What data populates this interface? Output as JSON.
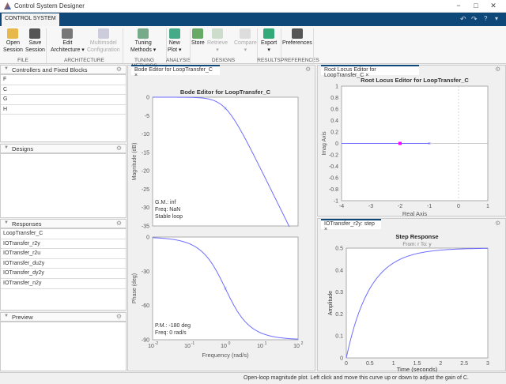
{
  "window": {
    "title": "Control System Designer",
    "controls": [
      "−",
      "□",
      "✕"
    ]
  },
  "ribbon": {
    "tab": "CONTROL SYSTEM",
    "buttons": [
      {
        "id": "open",
        "label1": "Open",
        "label2": "Session",
        "icon": "folder-icon",
        "enabled": true
      },
      {
        "id": "save",
        "label1": "Save",
        "label2": "Session",
        "icon": "save-icon",
        "enabled": true
      },
      {
        "id": "edit",
        "label1": "Edit",
        "label2": "Architecture ▾",
        "icon": "architecture-icon",
        "enabled": true
      },
      {
        "id": "multimodel",
        "label1": "Multimodel",
        "label2": "Configuration",
        "icon": "multimodel-icon",
        "enabled": false
      },
      {
        "id": "tuning",
        "label1": "Tuning",
        "label2": "Methods ▾",
        "icon": "tuning-icon",
        "enabled": true
      },
      {
        "id": "newplot",
        "label1": "New",
        "label2": "Plot ▾",
        "icon": "new-plot-icon",
        "enabled": true
      },
      {
        "id": "store",
        "label1": "Store",
        "label2": "",
        "icon": "store-icon",
        "enabled": true
      },
      {
        "id": "retrieve",
        "label1": "Retrieve",
        "label2": "▾",
        "icon": "retrieve-icon",
        "enabled": false
      },
      {
        "id": "compare",
        "label1": "Compare",
        "label2": "▾",
        "icon": "compare-icon",
        "enabled": false
      },
      {
        "id": "export",
        "label1": "Export",
        "label2": "▾",
        "icon": "export-icon",
        "enabled": true
      },
      {
        "id": "prefs",
        "label1": "Preferences",
        "label2": "",
        "icon": "gear-icon",
        "enabled": true
      }
    ],
    "groups": [
      "FILE",
      "ARCHITECTURE",
      "TUNING METHODS",
      "ANALYSIS",
      "DESIGNS",
      "RESULTS",
      "PREFERENCES"
    ]
  },
  "left": {
    "controllers": {
      "title": "Controllers and Fixed Blocks",
      "items": [
        "F",
        "C",
        "G",
        "H"
      ]
    },
    "designs": {
      "title": "Designs",
      "items": []
    },
    "responses": {
      "title": "Responses",
      "items": [
        "LoopTransfer_C",
        "IOTransfer_r2y",
        "IOTransfer_r2u",
        "IOTransfer_du2y",
        "IOTransfer_dy2y",
        "IOTransfer_n2y"
      ]
    },
    "preview": {
      "title": "Preview"
    }
  },
  "tabs": {
    "bode": "Bode Editor for LoopTransfer_C",
    "rlocus": "Root Locus Editor for LoopTransfer_C",
    "step": "IOTransfer_r2y: step"
  },
  "status": "Open-loop magnitude plot. Left click and move this curve up or down to adjust the gain of C.",
  "colors": {
    "accent": "#0e4878",
    "curve": "#6d6dff",
    "closed_loop_pole": "#ff00ff"
  },
  "chart_data": [
    {
      "type": "line",
      "title": "Bode Editor for LoopTransfer_C",
      "ylabel": "Magnitude (dB)",
      "xscale": "log",
      "xlim": [
        0.01,
        100
      ],
      "ylim": [
        -35,
        0
      ],
      "yticks": [
        "0",
        "-5",
        "-10",
        "-15",
        "-20",
        "-25",
        "-30",
        "-35"
      ],
      "series": [
        {
          "transfer_function": "1/(s+1)",
          "marker_at": 1
        }
      ],
      "annotations": [
        "G.M.: inf",
        "Freq: NaN",
        "Stable loop"
      ]
    },
    {
      "type": "line",
      "ylabel": "Phase (deg)",
      "xlabel": "Frequency (rad/s)",
      "xscale": "log",
      "xlim": [
        0.01,
        100
      ],
      "ylim": [
        -90,
        0
      ],
      "yticks": [
        "0",
        "-30",
        "-60",
        "-90"
      ],
      "xticks": [
        "10",
        "10",
        "10",
        "10",
        "10"
      ],
      "xtick_exponents": [
        "-2",
        "-1",
        "0",
        "1",
        "2"
      ],
      "annotations": [
        "P.M.: -180 deg",
        "Freq: 0 rad/s"
      ]
    },
    {
      "type": "scatter",
      "title": "Root Locus Editor for LoopTransfer_C",
      "xlabel": "Real Axis",
      "ylabel": "Imag Axis",
      "xlim": [
        -4,
        1
      ],
      "ylim": [
        -1,
        1
      ],
      "xticks": [
        "-4",
        "-3",
        "-2",
        "-1",
        "0",
        "1"
      ],
      "yticks": [
        "1",
        "0.8",
        "0.6",
        "0.4",
        "0.2",
        "0",
        "-0.2",
        "-0.4",
        "-0.6",
        "-0.8",
        "-1"
      ],
      "open_loop_poles": [
        [
          -1,
          0
        ]
      ],
      "closed_loop_poles": [
        [
          -2,
          0
        ]
      ],
      "locus": [
        [
          -4,
          0
        ],
        [
          -1,
          0
        ]
      ]
    },
    {
      "type": "line",
      "title": "Step Response",
      "subtitle": "From: r  To: y",
      "xlabel": "Time (seconds)",
      "ylabel": "Amplitude",
      "xlim": [
        0,
        3
      ],
      "ylim": [
        0,
        0.5
      ],
      "xticks": [
        "0",
        "0.5",
        "1",
        "1.5",
        "2",
        "2.5",
        "3"
      ],
      "yticks": [
        "0",
        "0.1",
        "0.2",
        "0.3",
        "0.4",
        "0.5"
      ],
      "series": [
        {
          "formula": "0.5*(1-exp(-2t))"
        }
      ]
    }
  ]
}
